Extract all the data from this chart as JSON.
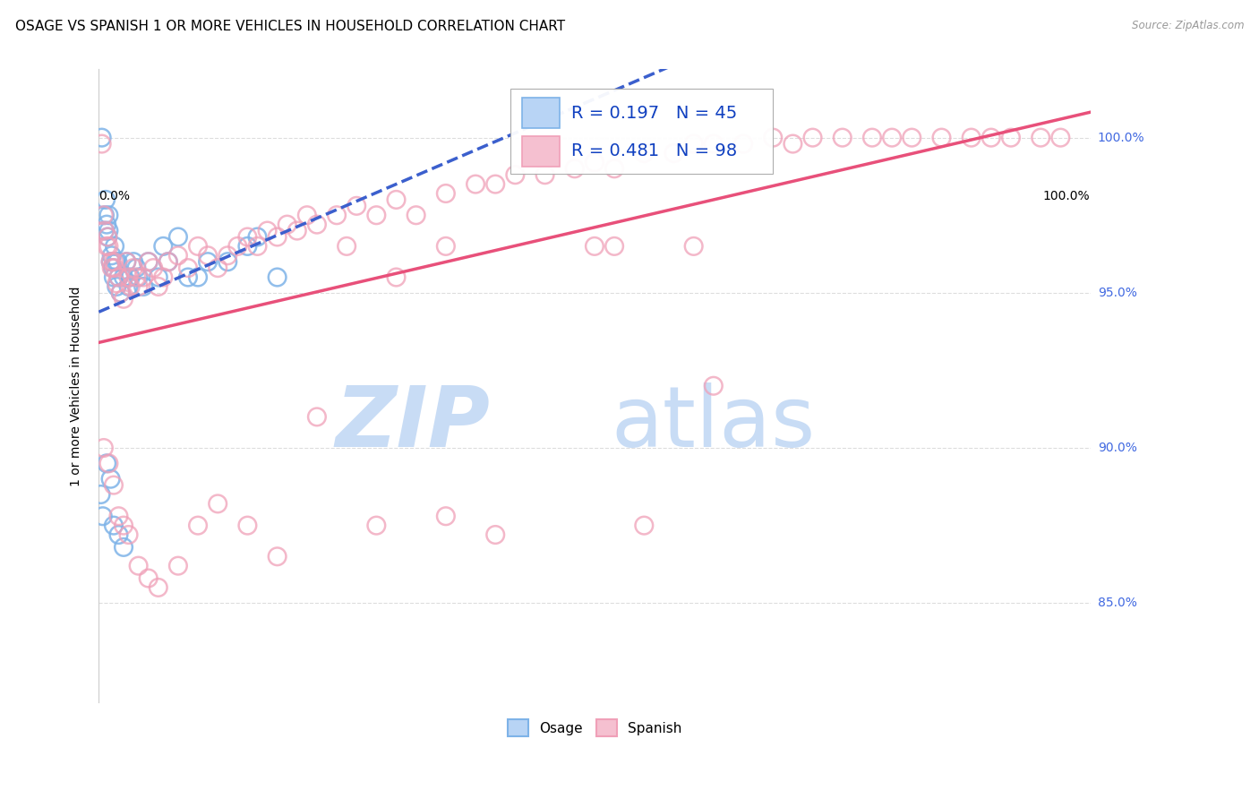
{
  "title": "OSAGE VS SPANISH 1 OR MORE VEHICLES IN HOUSEHOLD CORRELATION CHART",
  "source": "Source: ZipAtlas.com",
  "ylabel": "1 or more Vehicles in Household",
  "ytick_labels": [
    "100.0%",
    "95.0%",
    "90.0%",
    "85.0%"
  ],
  "ytick_values": [
    1.0,
    0.95,
    0.9,
    0.85
  ],
  "xmin": 0.0,
  "xmax": 1.0,
  "ymin": 0.818,
  "ymax": 1.022,
  "osage_R": 0.197,
  "osage_N": 45,
  "spanish_R": 0.481,
  "spanish_N": 98,
  "osage_color": "#7EB3E8",
  "spanish_color": "#F0A0B8",
  "osage_line_color": "#3B5FCD",
  "spanish_line_color": "#E8507A",
  "legend_osage_face": "#B8D4F5",
  "legend_spanish_face": "#F5C0D0",
  "watermark_zip": "ZIP",
  "watermark_atlas": "atlas",
  "watermark_color": "#C8DCF5",
  "background_color": "#FFFFFF",
  "grid_color": "#DDDDDD",
  "title_fontsize": 11,
  "osage_x": [
    0.003,
    0.006,
    0.006,
    0.007,
    0.008,
    0.009,
    0.01,
    0.01,
    0.012,
    0.013,
    0.014,
    0.015,
    0.016,
    0.017,
    0.018,
    0.019,
    0.02,
    0.022,
    0.025,
    0.028,
    0.03,
    0.032,
    0.035,
    0.038,
    0.04,
    0.045,
    0.05,
    0.06,
    0.065,
    0.07,
    0.08,
    0.09,
    0.1,
    0.11,
    0.13,
    0.15,
    0.16,
    0.18,
    0.002,
    0.004,
    0.008,
    0.012,
    0.015,
    0.02,
    0.025
  ],
  "osage_y": [
    1.0,
    0.975,
    0.97,
    0.98,
    0.972,
    0.968,
    0.975,
    0.97,
    0.96,
    0.962,
    0.958,
    0.955,
    0.965,
    0.96,
    0.952,
    0.96,
    0.955,
    0.95,
    0.955,
    0.96,
    0.952,
    0.955,
    0.96,
    0.958,
    0.955,
    0.952,
    0.96,
    0.955,
    0.965,
    0.96,
    0.968,
    0.955,
    0.955,
    0.96,
    0.96,
    0.965,
    0.968,
    0.955,
    0.885,
    0.878,
    0.895,
    0.89,
    0.875,
    0.872,
    0.868
  ],
  "spanish_x": [
    0.003,
    0.005,
    0.006,
    0.008,
    0.009,
    0.01,
    0.012,
    0.013,
    0.015,
    0.016,
    0.018,
    0.02,
    0.022,
    0.025,
    0.028,
    0.03,
    0.032,
    0.035,
    0.038,
    0.04,
    0.045,
    0.05,
    0.055,
    0.06,
    0.065,
    0.07,
    0.08,
    0.09,
    0.1,
    0.11,
    0.12,
    0.13,
    0.14,
    0.15,
    0.16,
    0.17,
    0.18,
    0.19,
    0.2,
    0.21,
    0.22,
    0.24,
    0.26,
    0.28,
    0.3,
    0.32,
    0.35,
    0.38,
    0.4,
    0.42,
    0.45,
    0.48,
    0.5,
    0.52,
    0.55,
    0.58,
    0.6,
    0.62,
    0.65,
    0.68,
    0.7,
    0.72,
    0.75,
    0.78,
    0.8,
    0.82,
    0.85,
    0.88,
    0.9,
    0.92,
    0.95,
    0.97,
    0.005,
    0.01,
    0.015,
    0.02,
    0.025,
    0.03,
    0.04,
    0.05,
    0.06,
    0.08,
    0.1,
    0.12,
    0.15,
    0.18,
    0.22,
    0.28,
    0.35,
    0.4,
    0.3,
    0.25,
    0.35,
    0.5,
    0.6,
    0.52,
    0.62,
    0.55
  ],
  "spanish_y": [
    0.998,
    0.975,
    0.97,
    0.965,
    0.968,
    0.965,
    0.96,
    0.958,
    0.96,
    0.958,
    0.953,
    0.955,
    0.95,
    0.948,
    0.96,
    0.955,
    0.952,
    0.958,
    0.955,
    0.952,
    0.955,
    0.96,
    0.958,
    0.952,
    0.955,
    0.96,
    0.962,
    0.958,
    0.965,
    0.962,
    0.958,
    0.962,
    0.965,
    0.968,
    0.965,
    0.97,
    0.968,
    0.972,
    0.97,
    0.975,
    0.972,
    0.975,
    0.978,
    0.975,
    0.98,
    0.975,
    0.982,
    0.985,
    0.985,
    0.988,
    0.988,
    0.99,
    0.992,
    0.99,
    0.995,
    0.995,
    0.998,
    0.998,
    0.998,
    1.0,
    0.998,
    1.0,
    1.0,
    1.0,
    1.0,
    1.0,
    1.0,
    1.0,
    1.0,
    1.0,
    1.0,
    1.0,
    0.9,
    0.895,
    0.888,
    0.878,
    0.875,
    0.872,
    0.862,
    0.858,
    0.855,
    0.862,
    0.875,
    0.882,
    0.875,
    0.865,
    0.91,
    0.875,
    0.878,
    0.872,
    0.955,
    0.965,
    0.965,
    0.965,
    0.965,
    0.965,
    0.92,
    0.875
  ]
}
